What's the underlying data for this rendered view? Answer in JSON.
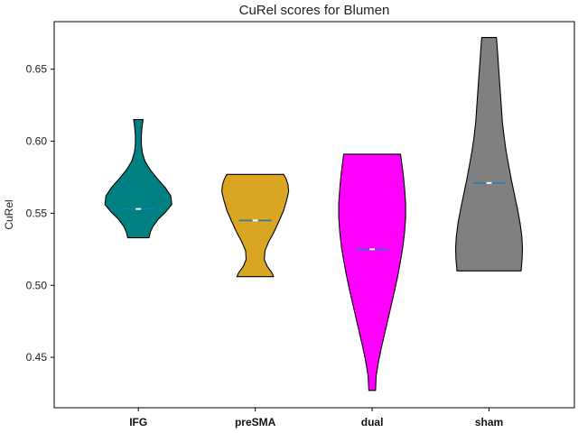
{
  "chart_data": {
    "type": "violin",
    "title": "CuRel scores for Blumen",
    "xlabel": "",
    "ylabel": "CuRel",
    "ylim": [
      0.415,
      0.683
    ],
    "yticks": [
      0.45,
      0.5,
      0.55,
      0.6,
      0.65
    ],
    "ytick_labels": [
      "0.45",
      "0.50",
      "0.55",
      "0.60",
      "0.65"
    ],
    "grid": false,
    "categories": [
      "IFG",
      "preSMA",
      "dual",
      "sham"
    ],
    "colors": [
      "#008080",
      "#DAA520",
      "#FF00FF",
      "#808080"
    ],
    "mean_line_color": "#1f77b4",
    "median_marker_color": "#ffffff",
    "violins": [
      {
        "name": "IFG",
        "min": 0.533,
        "max": 0.615,
        "mean": 0.553,
        "median": 0.553,
        "profile": [
          [
            0.533,
            0.32
          ],
          [
            0.537,
            0.36
          ],
          [
            0.541,
            0.44
          ],
          [
            0.546,
            0.6
          ],
          [
            0.551,
            0.82
          ],
          [
            0.556,
            1.0
          ],
          [
            0.562,
            0.97
          ],
          [
            0.568,
            0.8
          ],
          [
            0.574,
            0.57
          ],
          [
            0.58,
            0.36
          ],
          [
            0.586,
            0.2
          ],
          [
            0.592,
            0.12
          ],
          [
            0.598,
            0.09
          ],
          [
            0.604,
            0.09
          ],
          [
            0.61,
            0.11
          ],
          [
            0.615,
            0.14
          ]
        ]
      },
      {
        "name": "preSMA",
        "min": 0.506,
        "max": 0.577,
        "mean": 0.545,
        "median": 0.545,
        "profile": [
          [
            0.506,
            0.55
          ],
          [
            0.509,
            0.49
          ],
          [
            0.513,
            0.36
          ],
          [
            0.518,
            0.27
          ],
          [
            0.524,
            0.29
          ],
          [
            0.53,
            0.4
          ],
          [
            0.537,
            0.56
          ],
          [
            0.545,
            0.72
          ],
          [
            0.552,
            0.85
          ],
          [
            0.559,
            0.94
          ],
          [
            0.565,
            1.0
          ],
          [
            0.57,
            0.98
          ],
          [
            0.574,
            0.92
          ],
          [
            0.577,
            0.85
          ]
        ]
      },
      {
        "name": "dual",
        "min": 0.427,
        "max": 0.591,
        "mean": 0.525,
        "median": 0.525,
        "profile": [
          [
            0.427,
            0.1
          ],
          [
            0.437,
            0.12
          ],
          [
            0.447,
            0.19
          ],
          [
            0.457,
            0.28
          ],
          [
            0.467,
            0.38
          ],
          [
            0.477,
            0.48
          ],
          [
            0.487,
            0.58
          ],
          [
            0.497,
            0.68
          ],
          [
            0.507,
            0.77
          ],
          [
            0.517,
            0.85
          ],
          [
            0.527,
            0.92
          ],
          [
            0.537,
            0.97
          ],
          [
            0.547,
            1.0
          ],
          [
            0.557,
            1.0
          ],
          [
            0.567,
            0.97
          ],
          [
            0.577,
            0.93
          ],
          [
            0.586,
            0.88
          ],
          [
            0.591,
            0.85
          ]
        ]
      },
      {
        "name": "sham",
        "min": 0.51,
        "max": 0.672,
        "mean": 0.571,
        "median": 0.571,
        "profile": [
          [
            0.51,
            0.96
          ],
          [
            0.518,
            0.99
          ],
          [
            0.526,
            1.0
          ],
          [
            0.534,
            0.98
          ],
          [
            0.543,
            0.93
          ],
          [
            0.553,
            0.85
          ],
          [
            0.563,
            0.76
          ],
          [
            0.573,
            0.67
          ],
          [
            0.583,
            0.59
          ],
          [
            0.593,
            0.51
          ],
          [
            0.603,
            0.45
          ],
          [
            0.613,
            0.4
          ],
          [
            0.623,
            0.37
          ],
          [
            0.633,
            0.34
          ],
          [
            0.643,
            0.31
          ],
          [
            0.653,
            0.28
          ],
          [
            0.663,
            0.25
          ],
          [
            0.672,
            0.22
          ]
        ]
      }
    ]
  }
}
